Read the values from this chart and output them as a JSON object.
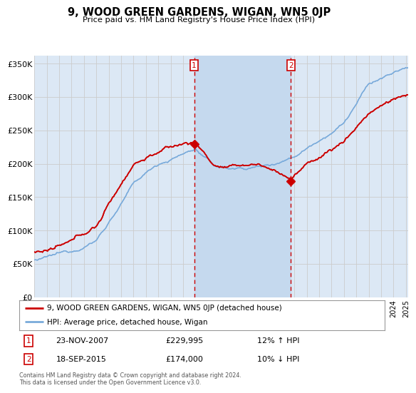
{
  "title": "9, WOOD GREEN GARDENS, WIGAN, WN5 0JP",
  "subtitle": "Price paid vs. HM Land Registry's House Price Index (HPI)",
  "ylabel_ticks": [
    "£0",
    "£50K",
    "£100K",
    "£150K",
    "£200K",
    "£250K",
    "£300K",
    "£350K"
  ],
  "ytick_values": [
    0,
    50000,
    100000,
    150000,
    200000,
    250000,
    300000,
    350000
  ],
  "ylim": [
    0,
    362000
  ],
  "xlim_start": 1995.0,
  "xlim_end": 2025.2,
  "legend_line1": "9, WOOD GREEN GARDENS, WIGAN, WN5 0JP (detached house)",
  "legend_line2": "HPI: Average price, detached house, Wigan",
  "marker1_x": 2007.9,
  "marker1_y": 229995,
  "marker1_label": "1",
  "marker1_date": "23-NOV-2007",
  "marker1_price": "£229,995",
  "marker1_hpi": "12% ↑ HPI",
  "marker2_x": 2015.72,
  "marker2_y": 174000,
  "marker2_label": "2",
  "marker2_date": "18-SEP-2015",
  "marker2_price": "£174,000",
  "marker2_hpi": "10% ↓ HPI",
  "footer": "Contains HM Land Registry data © Crown copyright and database right 2024.\nThis data is licensed under the Open Government Licence v3.0.",
  "red_color": "#cc0000",
  "blue_color": "#7aabdb",
  "marker_box_color": "#cc0000",
  "grid_color": "#cccccc",
  "bg_color": "#dce8f5",
  "plot_bg": "#ffffff",
  "span_color": "#c5d9ee"
}
